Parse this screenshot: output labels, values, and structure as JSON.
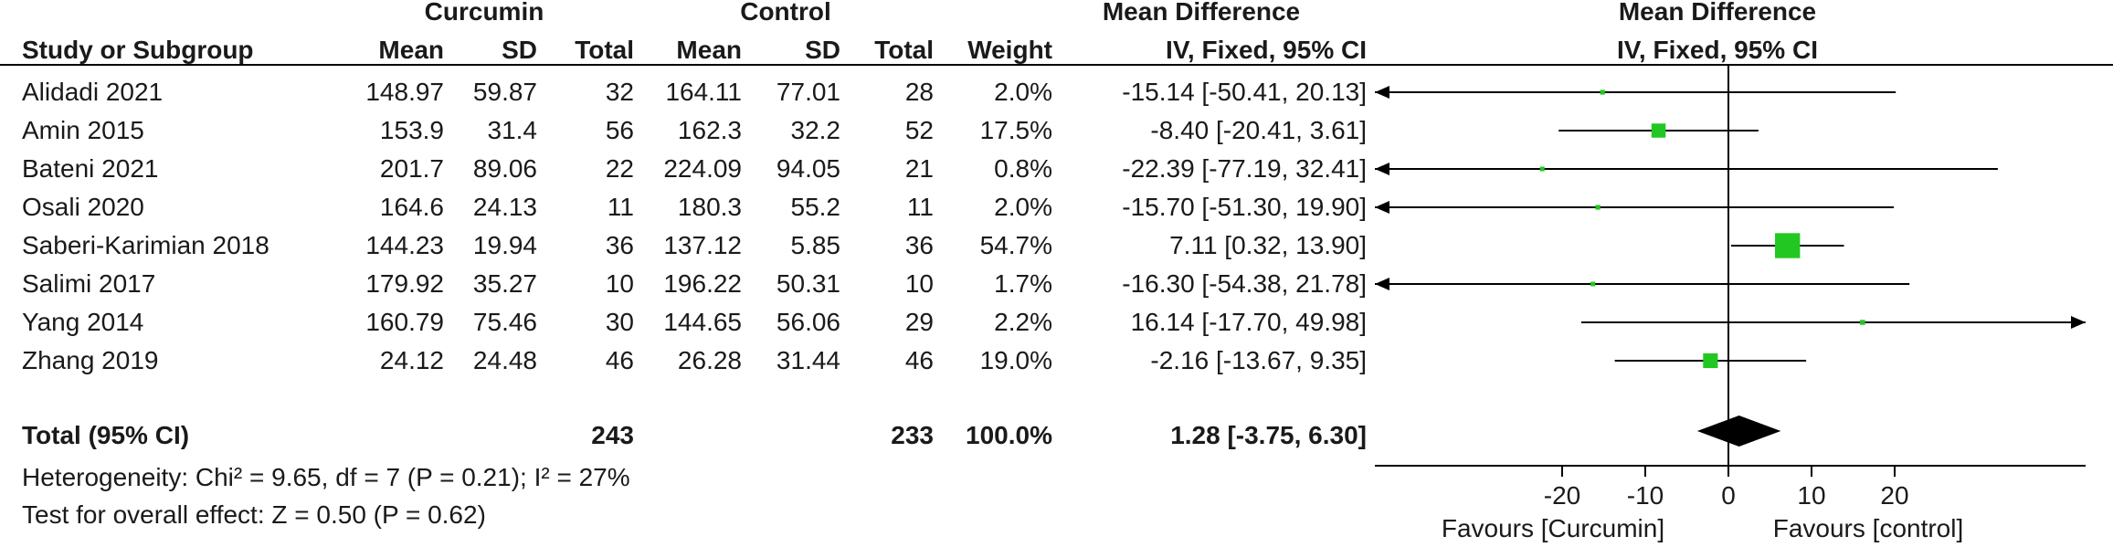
{
  "header": {
    "group1": "Curcumin",
    "group2": "Control",
    "md_top": "Mean Difference",
    "md_plot_top": "Mean Difference",
    "study_col": "Study or Subgroup",
    "mean1": "Mean",
    "sd1": "SD",
    "total1": "Total",
    "mean2": "Mean",
    "sd2": "SD",
    "total2": "Total",
    "weight": "Weight",
    "md_sub": "IV, Fixed, 95% CI",
    "md_plot_sub": "IV, Fixed, 95% CI"
  },
  "studies": [
    {
      "name": "Alidadi  2021",
      "mean1": "148.97",
      "sd1": "59.87",
      "n1": "32",
      "mean2": "164.11",
      "sd2": "77.01",
      "n2": "28",
      "weight": "2.0%",
      "ci": "-15.14 [-50.41, 20.13]"
    },
    {
      "name": "Amin  2015",
      "mean1": "153.9",
      "sd1": "31.4",
      "n1": "56",
      "mean2": "162.3",
      "sd2": "32.2",
      "n2": "52",
      "weight": "17.5%",
      "ci": "-8.40 [-20.41, 3.61]"
    },
    {
      "name": "Bateni  2021",
      "mean1": "201.7",
      "sd1": "89.06",
      "n1": "22",
      "mean2": "224.09",
      "sd2": "94.05",
      "n2": "21",
      "weight": "0.8%",
      "ci": "-22.39 [-77.19, 32.41]"
    },
    {
      "name": "Osali  2020",
      "mean1": "164.6",
      "sd1": "24.13",
      "n1": "11",
      "mean2": "180.3",
      "sd2": "55.2",
      "n2": "11",
      "weight": "2.0%",
      "ci": "-15.70 [-51.30, 19.90]"
    },
    {
      "name": "Saberi-Karimian  2018",
      "mean1": "144.23",
      "sd1": "19.94",
      "n1": "36",
      "mean2": "137.12",
      "sd2": "5.85",
      "n2": "36",
      "weight": "54.7%",
      "ci": "7.11 [0.32, 13.90]"
    },
    {
      "name": "Salimi  2017",
      "mean1": "179.92",
      "sd1": "35.27",
      "n1": "10",
      "mean2": "196.22",
      "sd2": "50.31",
      "n2": "10",
      "weight": "1.7%",
      "ci": "-16.30 [-54.38, 21.78]"
    },
    {
      "name": "Yang  2014",
      "mean1": "160.79",
      "sd1": "75.46",
      "n1": "30",
      "mean2": "144.65",
      "sd2": "56.06",
      "n2": "29",
      "weight": "2.2%",
      "ci": "16.14 [-17.70, 49.98]"
    },
    {
      "name": "Zhang  2019",
      "mean1": "24.12",
      "sd1": "24.48",
      "n1": "46",
      "mean2": "26.28",
      "sd2": "31.44",
      "n2": "46",
      "weight": "19.0%",
      "ci": "-2.16 [-13.67, 9.35]"
    }
  ],
  "total": {
    "label": "Total (95% CI)",
    "n1": "243",
    "n2": "233",
    "weight": "100.0%",
    "ci": "1.28 [-3.75, 6.30]"
  },
  "heterogeneity": "Heterogeneity: Chi² = 9.65, df = 7 (P = 0.21); I² = 27%",
  "overall_effect": "Test for overall effect: Z = 0.50 (P = 0.62)",
  "axis": {
    "favours_left": "Favours [Curcumin]",
    "favours_right": "Favours [control]"
  },
  "colors": {
    "marker": "#22c722",
    "text": "#1a1a1a",
    "line": "#000000"
  },
  "chart_data": {
    "type": "forest",
    "xlim": [
      -40,
      40
    ],
    "ticks": [
      -20,
      -10,
      0,
      10,
      20
    ],
    "tick_labels": [
      "-20",
      "-10",
      "0",
      "10",
      "20"
    ],
    "points": [
      {
        "md": -15.14,
        "lo": -50.41,
        "hi": 20.13,
        "weight": 2.0
      },
      {
        "md": -8.4,
        "lo": -20.41,
        "hi": 3.61,
        "weight": 17.5
      },
      {
        "md": -22.39,
        "lo": -77.19,
        "hi": 32.41,
        "weight": 0.8
      },
      {
        "md": -15.7,
        "lo": -51.3,
        "hi": 19.9,
        "weight": 2.0
      },
      {
        "md": 7.11,
        "lo": 0.32,
        "hi": 13.9,
        "weight": 54.7
      },
      {
        "md": -16.3,
        "lo": -54.38,
        "hi": 21.78,
        "weight": 1.7
      },
      {
        "md": 16.14,
        "lo": -17.7,
        "hi": 49.98,
        "weight": 2.2
      },
      {
        "md": -2.16,
        "lo": -13.67,
        "hi": 9.35,
        "weight": 19.0
      }
    ],
    "pooled": {
      "md": 1.28,
      "lo": -3.75,
      "hi": 6.3
    }
  }
}
